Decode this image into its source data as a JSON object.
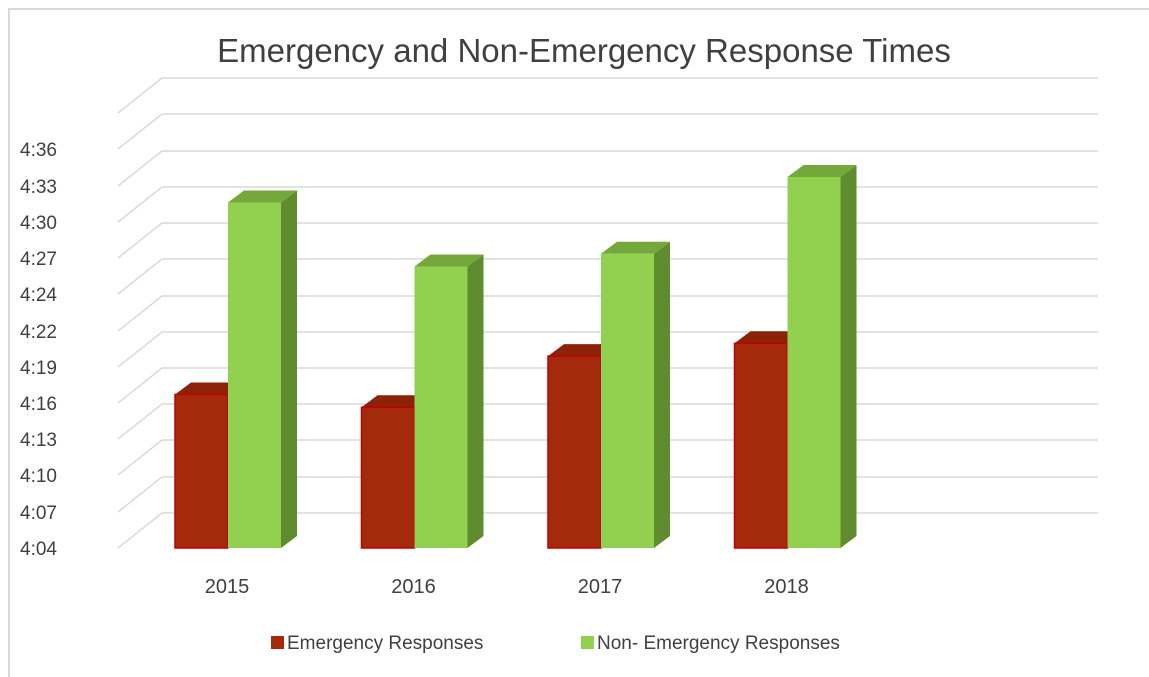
{
  "chart_data": {
    "type": "bar",
    "style": "3d-clustered-column",
    "title": "Emergency and Non-Emergency Response Times",
    "xlabel": "",
    "ylabel": "",
    "categories": [
      "2015",
      "2016",
      "2017",
      "2018"
    ],
    "y_ticks": [
      "4:04",
      "4:07",
      "4:10",
      "4:13",
      "4:16",
      "4:19",
      "4:22",
      "4:24",
      "4:27",
      "4:30",
      "4:33",
      "4:36"
    ],
    "ylim": [
      "4:04",
      "4:38"
    ],
    "series": [
      {
        "name": "Emergency Responses",
        "values": [
          "4:16",
          "4:15",
          "4:19",
          "4:20"
        ],
        "color": "#a52a0c"
      },
      {
        "name": "Non- Emergency Responses",
        "values": [
          "4:31",
          "4:26",
          "4:27",
          "4:33"
        ],
        "color": "#92d050"
      }
    ],
    "grid": true,
    "legend_position": "bottom"
  }
}
